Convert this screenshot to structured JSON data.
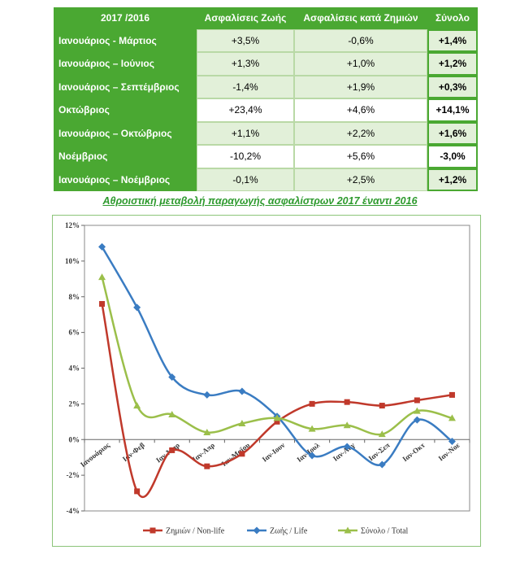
{
  "table": {
    "headers": [
      "2017 /2016",
      "Ασφαλίσεις Ζωής",
      "Ασφαλίσεις κατά Ζημιών",
      "Σύνολο"
    ],
    "rows": [
      {
        "period": "Ιανουάριος - Μάρτιος",
        "life": "+3,5%",
        "nonlife": "-0,6%",
        "total": "+1,4%"
      },
      {
        "period": "Ιανουάριος – Ιούνιος",
        "life": "+1,3%",
        "nonlife": "+1,0%",
        "total": "+1,2%"
      },
      {
        "period": "Ιανουάριος – Σεπτέμβριος",
        "life": "-1,4%",
        "nonlife": "+1,9%",
        "total": "+0,3%"
      },
      {
        "period": "Οκτώβριος",
        "life": "+23,4%",
        "nonlife": "+4,6%",
        "total": "+14,1%"
      },
      {
        "period": "Ιανουάριος – Οκτώβριος",
        "life": "+1,1%",
        "nonlife": "+2,2%",
        "total": "+1,6%"
      },
      {
        "period": "Νοέμβριος",
        "life": "-10,2%",
        "nonlife": "+5,6%",
        "total": "-3,0%"
      },
      {
        "period": "Ιανουάριος – Νοέμβριος",
        "life": "-0,1%",
        "nonlife": "+2,5%",
        "total": "+1,2%"
      }
    ]
  },
  "chart_data": {
    "type": "line",
    "title": "Αθροιστική μεταβολή παραγωγής ασφαλίστρων 2017 έναντι 2016",
    "categories": [
      "Ιανουάριος",
      "Ιαν-Φεβ",
      "Ιαν-Μαρ",
      "Ιαν-Απρ",
      "Ιαν-Μαϊου",
      "Ιαν-Ιουν",
      "Ιαν-Ιουλ",
      "Ιαν-Αυγ",
      "Ιαν-Σεπ",
      "Ιαν-Οκτ",
      "Ιαν-Νοε"
    ],
    "ylim": [
      -4,
      12
    ],
    "yticks": [
      "-4%",
      "-2%",
      "0%",
      "2%",
      "4%",
      "6%",
      "8%",
      "10%",
      "12%"
    ],
    "series": [
      {
        "name": "Ζημιών / Non-life",
        "color": "#c0392b",
        "values": [
          7.6,
          -2.9,
          -0.6,
          -1.5,
          -0.8,
          1.0,
          2.0,
          2.1,
          1.9,
          2.2,
          2.5
        ]
      },
      {
        "name": "Ζωής / Life",
        "color": "#3a7cc2",
        "values": [
          10.8,
          7.4,
          3.5,
          2.5,
          2.7,
          1.3,
          -0.9,
          -0.4,
          -1.4,
          1.1,
          -0.1
        ]
      },
      {
        "name": "Σύνολο / Total",
        "color": "#9bbf4a",
        "values": [
          9.1,
          1.9,
          1.4,
          0.4,
          0.9,
          1.2,
          0.6,
          0.8,
          0.3,
          1.6,
          1.2
        ]
      }
    ]
  }
}
